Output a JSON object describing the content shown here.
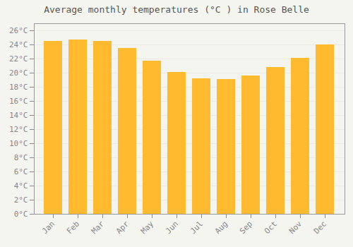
{
  "chart_data": {
    "type": "bar",
    "title": "Average monthly temperatures (°C ) in Rose Belle",
    "categories": [
      "Jan",
      "Feb",
      "Mar",
      "Apr",
      "May",
      "Jun",
      "Jul",
      "Aug",
      "Sep",
      "Oct",
      "Nov",
      "Dec"
    ],
    "values": [
      24.5,
      24.7,
      24.5,
      23.5,
      21.7,
      20.1,
      19.2,
      19.1,
      19.6,
      20.8,
      22.1,
      24.0
    ],
    "color": "#FFBA30",
    "ylim": [
      0,
      27
    ],
    "yticks": [
      {
        "value": 0,
        "label": "0°C"
      },
      {
        "value": 2,
        "label": "2°C"
      },
      {
        "value": 4,
        "label": "4°C"
      },
      {
        "value": 6,
        "label": "6°C"
      },
      {
        "value": 8,
        "label": "8°C"
      },
      {
        "value": 10,
        "label": "10°C"
      },
      {
        "value": 12,
        "label": "12°C"
      },
      {
        "value": 14,
        "label": "14°C"
      },
      {
        "value": 16,
        "label": "16°C"
      },
      {
        "value": 18,
        "label": "18°C"
      },
      {
        "value": 20,
        "label": "20°C"
      },
      {
        "value": 22,
        "label": "22°C"
      },
      {
        "value": 24,
        "label": "24°C"
      },
      {
        "value": 26,
        "label": "26°C"
      }
    ],
    "grid": true
  }
}
